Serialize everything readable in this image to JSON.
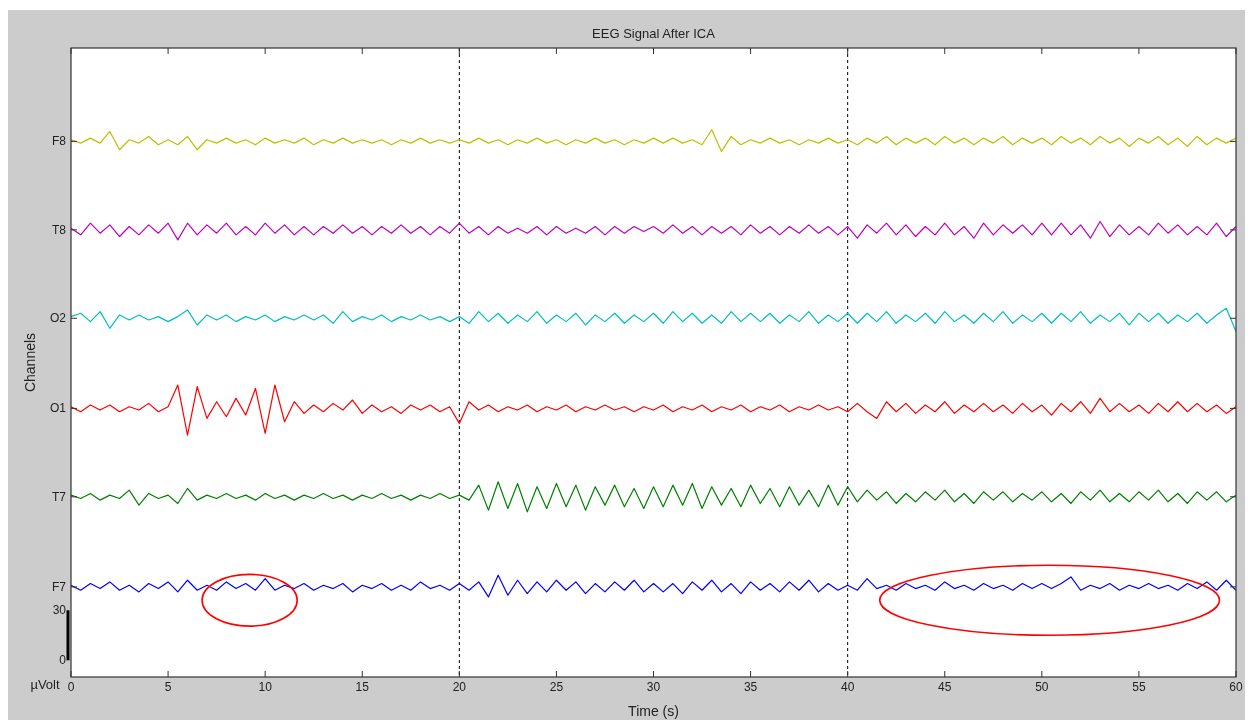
{
  "chart_data": {
    "type": "line",
    "title": "EEG Signal After ICA",
    "xlabel": "Time (s)",
    "ylabel": "Channels",
    "annotations": [
      "µVolt"
    ],
    "xlim": [
      0,
      60
    ],
    "xticks": [
      0,
      5,
      10,
      15,
      20,
      25,
      30,
      35,
      40,
      45,
      50,
      55,
      60
    ],
    "ylim": [
      -10,
      367
    ],
    "yticks": [
      {
        "value": 0,
        "label": "0"
      },
      {
        "value": 30,
        "label": "30"
      },
      {
        "value": 44,
        "label": "F7"
      },
      {
        "value": 98,
        "label": "T7"
      },
      {
        "value": 151,
        "label": "O1"
      },
      {
        "value": 205,
        "label": "O2"
      },
      {
        "value": 258,
        "label": "T8"
      },
      {
        "value": 311,
        "label": "F8"
      }
    ],
    "ref_lines": [
      {
        "axis": "x",
        "value": 20,
        "color": "#000000",
        "line_style": "dashed"
      },
      {
        "axis": "x",
        "value": 40,
        "color": "#000000",
        "line_style": "dashed"
      }
    ],
    "x": [
      0,
      0.5,
      1,
      1.5,
      2,
      2.5,
      3,
      3.5,
      4,
      4.5,
      5,
      5.5,
      6,
      6.5,
      7,
      7.5,
      8,
      8.5,
      9,
      9.5,
      10,
      10.5,
      11,
      11.5,
      12,
      12.5,
      13,
      13.5,
      14,
      14.5,
      15,
      15.5,
      16,
      16.5,
      17,
      17.5,
      18,
      18.5,
      19,
      19.5,
      20,
      20.5,
      21,
      21.5,
      22,
      22.5,
      23,
      23.5,
      24,
      24.5,
      25,
      25.5,
      26,
      26.5,
      27,
      27.5,
      28,
      28.5,
      29,
      29.5,
      30,
      30.5,
      31,
      31.5,
      32,
      32.5,
      33,
      33.5,
      34,
      34.5,
      35,
      35.5,
      36,
      36.5,
      37,
      37.5,
      38,
      38.5,
      39,
      39.5,
      40,
      40.5,
      41,
      41.5,
      42,
      42.5,
      43,
      43.5,
      44,
      44.5,
      45,
      45.5,
      46,
      46.5,
      47,
      47.5,
      48,
      48.5,
      49,
      49.5,
      50,
      50.5,
      51,
      51.5,
      52,
      52.5,
      53,
      53.5,
      54,
      54.5,
      55,
      55.5,
      56,
      56.5,
      57,
      57.5,
      58,
      58.5,
      59,
      59.5,
      60
    ],
    "series": [
      {
        "color": "#0000ff",
        "values": [
          45,
          42,
          46,
          43,
          47,
          42,
          45,
          41,
          46,
          43,
          47,
          41,
          48,
          42,
          45,
          42,
          47,
          43,
          46,
          42,
          49,
          42,
          45,
          43,
          46,
          42,
          45,
          43,
          46,
          41,
          45,
          43,
          46,
          42,
          45,
          42,
          47,
          43,
          45,
          42,
          46,
          42,
          47,
          38,
          51,
          39,
          48,
          40,
          47,
          41,
          48,
          42,
          47,
          40,
          46,
          41,
          47,
          42,
          48,
          41,
          46,
          41,
          46,
          40,
          47,
          42,
          48,
          41,
          46,
          40,
          47,
          42,
          46,
          41,
          47,
          42,
          48,
          41,
          46,
          42,
          45,
          42,
          49,
          43,
          45,
          42,
          46,
          43,
          45,
          42,
          47,
          43,
          45,
          42,
          46,
          43,
          45,
          42,
          46,
          43,
          46,
          43,
          46,
          50,
          42,
          45,
          43,
          46,
          42,
          45,
          43,
          46,
          43,
          45,
          42,
          46,
          43,
          47,
          42,
          48,
          42
        ]
      },
      {
        "color": "#008000",
        "values": [
          99,
          97,
          100,
          96,
          99,
          97,
          102,
          93,
          100,
          97,
          99,
          94,
          103,
          96,
          99,
          97,
          100,
          97,
          99,
          96,
          100,
          97,
          99,
          96,
          99,
          97,
          100,
          97,
          99,
          96,
          99,
          97,
          100,
          97,
          99,
          96,
          99,
          97,
          100,
          97,
          99,
          96,
          105,
          90,
          107,
          91,
          106,
          89,
          104,
          91,
          106,
          92,
          105,
          90,
          104,
          93,
          105,
          92,
          103,
          91,
          104,
          92,
          105,
          93,
          106,
          91,
          104,
          93,
          103,
          92,
          105,
          94,
          103,
          92,
          104,
          93,
          102,
          92,
          105,
          93,
          104,
          95,
          102,
          96,
          101,
          94,
          100,
          95,
          101,
          96,
          102,
          95,
          100,
          94,
          101,
          96,
          101,
          95,
          100,
          96,
          101,
          95,
          100,
          94,
          101,
          96,
          102,
          95,
          100,
          95,
          101,
          96,
          102,
          95,
          100,
          94,
          101,
          96,
          101,
          95,
          99
        ]
      },
      {
        "color": "#ff0000",
        "values": [
          152,
          149,
          153,
          150,
          153,
          149,
          152,
          150,
          154,
          149,
          152,
          165,
          135,
          164,
          145,
          155,
          146,
          157,
          147,
          163,
          136,
          165,
          143,
          155,
          148,
          153,
          149,
          154,
          150,
          156,
          148,
          153,
          149,
          152,
          148,
          153,
          150,
          153,
          149,
          152,
          142,
          155,
          150,
          153,
          149,
          152,
          150,
          153,
          149,
          152,
          150,
          153,
          149,
          152,
          150,
          153,
          150,
          152,
          149,
          152,
          150,
          153,
          149,
          152,
          150,
          153,
          149,
          152,
          150,
          153,
          149,
          152,
          150,
          153,
          149,
          152,
          150,
          153,
          150,
          152,
          149,
          154,
          149,
          145,
          155,
          149,
          154,
          148,
          153,
          149,
          155,
          148,
          153,
          149,
          154,
          149,
          153,
          148,
          154,
          149,
          153,
          147,
          154,
          149,
          155,
          148,
          157,
          149,
          154,
          149,
          153,
          148,
          154,
          149,
          155,
          149,
          154,
          149,
          153,
          148,
          152
        ]
      },
      {
        "color": "#00bfbf",
        "values": [
          206,
          208,
          203,
          209,
          199,
          207,
          204,
          207,
          204,
          206,
          203,
          206,
          210,
          201,
          207,
          204,
          207,
          203,
          206,
          204,
          207,
          203,
          206,
          204,
          207,
          204,
          207,
          202,
          209,
          203,
          206,
          204,
          207,
          203,
          206,
          204,
          207,
          204,
          206,
          203,
          206,
          202,
          209,
          203,
          208,
          202,
          207,
          203,
          209,
          202,
          207,
          203,
          208,
          201,
          207,
          203,
          208,
          202,
          207,
          203,
          208,
          202,
          209,
          203,
          208,
          202,
          207,
          202,
          209,
          203,
          208,
          203,
          208,
          202,
          207,
          203,
          209,
          202,
          207,
          203,
          208,
          202,
          208,
          203,
          209,
          202,
          207,
          203,
          208,
          202,
          209,
          203,
          207,
          202,
          208,
          203,
          209,
          202,
          207,
          203,
          208,
          202,
          208,
          203,
          209,
          202,
          207,
          203,
          208,
          201,
          208,
          203,
          208,
          202,
          207,
          203,
          208,
          202,
          207,
          211,
          197
        ]
      },
      {
        "color": "#bf00bf",
        "values": [
          259,
          255,
          262,
          256,
          261,
          254,
          260,
          255,
          261,
          256,
          262,
          252,
          262,
          255,
          261,
          256,
          262,
          255,
          260,
          255,
          262,
          256,
          261,
          255,
          260,
          255,
          260,
          256,
          261,
          256,
          260,
          255,
          260,
          256,
          261,
          256,
          260,
          255,
          260,
          256,
          262,
          256,
          260,
          255,
          260,
          256,
          259,
          256,
          260,
          255,
          260,
          256,
          259,
          256,
          260,
          255,
          260,
          256,
          260,
          257,
          260,
          256,
          261,
          256,
          260,
          255,
          260,
          256,
          260,
          255,
          261,
          256,
          260,
          255,
          260,
          256,
          261,
          256,
          260,
          255,
          260,
          253,
          261,
          256,
          262,
          255,
          261,
          254,
          260,
          255,
          262,
          255,
          260,
          253,
          262,
          255,
          261,
          256,
          261,
          255,
          262,
          255,
          262,
          255,
          261,
          253,
          263,
          254,
          261,
          255,
          260,
          255,
          262,
          256,
          261,
          255,
          260,
          255,
          262,
          254,
          260
        ]
      },
      {
        "color": "#bfbf00",
        "values": [
          312,
          310,
          313,
          310,
          317,
          306,
          312,
          310,
          314,
          309,
          312,
          309,
          314,
          306,
          312,
          310,
          313,
          310,
          312,
          309,
          313,
          310,
          312,
          310,
          313,
          309,
          312,
          310,
          313,
          310,
          312,
          310,
          312,
          309,
          312,
          310,
          313,
          310,
          312,
          310,
          312,
          310,
          313,
          310,
          312,
          309,
          312,
          310,
          313,
          310,
          312,
          309,
          312,
          310,
          313,
          310,
          312,
          309,
          312,
          310,
          313,
          310,
          313,
          310,
          312,
          309,
          318,
          305,
          314,
          309,
          312,
          310,
          313,
          310,
          312,
          309,
          312,
          310,
          313,
          310,
          312,
          309,
          313,
          310,
          314,
          309,
          313,
          310,
          313,
          309,
          314,
          310,
          313,
          309,
          313,
          310,
          314,
          309,
          313,
          310,
          313,
          309,
          314,
          310,
          313,
          309,
          314,
          310,
          313,
          308,
          313,
          310,
          314,
          309,
          313,
          308,
          314,
          309,
          313,
          310,
          313
        ]
      }
    ]
  }
}
